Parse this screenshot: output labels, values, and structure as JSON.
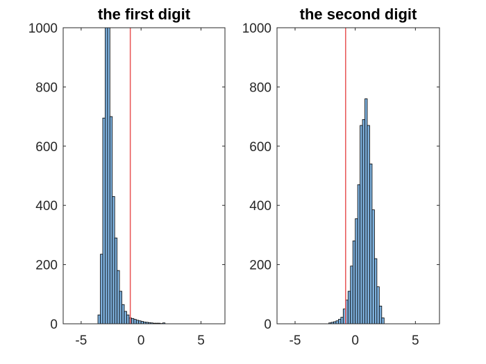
{
  "chart_data": [
    {
      "type": "bar",
      "title": "the first digit",
      "xlabel": "",
      "ylabel": "",
      "xlim": [
        -6.5,
        7
      ],
      "ylim": [
        0,
        1000
      ],
      "xticks": [
        -5,
        0,
        5
      ],
      "yticks": [
        0,
        200,
        400,
        600,
        800,
        1000
      ],
      "bin_width": 0.2,
      "bins_x": [
        -3.5,
        -3.3,
        -3.1,
        -2.9,
        -2.7,
        -2.5,
        -2.3,
        -2.1,
        -1.9,
        -1.7,
        -1.5,
        -1.3,
        -1.1,
        -0.9,
        -0.7,
        -0.5,
        -0.3,
        -0.1,
        0.1,
        0.3,
        0.5,
        0.7,
        0.9,
        1.1,
        1.3,
        1.5,
        1.7,
        1.9
      ],
      "values": [
        30,
        235,
        695,
        1000,
        1000,
        700,
        430,
        290,
        180,
        110,
        65,
        42,
        30,
        20,
        18,
        15,
        12,
        10,
        8,
        6,
        5,
        4,
        3,
        2,
        2,
        2,
        1,
        3
      ],
      "ref_line_x": -0.9,
      "bar_color": "#7eb1de",
      "ref_line_color": "#e85454"
    },
    {
      "type": "bar",
      "title": "the second digit",
      "xlabel": "",
      "ylabel": "",
      "xlim": [
        -6.5,
        7
      ],
      "ylim": [
        0,
        1000
      ],
      "xticks": [
        -5,
        0,
        5
      ],
      "yticks": [
        0,
        200,
        400,
        600,
        800,
        1000
      ],
      "bin_width": 0.2,
      "bins_x": [
        -2.1,
        -1.9,
        -1.7,
        -1.5,
        -1.3,
        -1.1,
        -0.9,
        -0.7,
        -0.5,
        -0.3,
        -0.1,
        0.1,
        0.3,
        0.5,
        0.7,
        0.9,
        1.1,
        1.3,
        1.5,
        1.7,
        1.9,
        2.1,
        2.3
      ],
      "values": [
        3,
        5,
        7,
        10,
        15,
        22,
        50,
        80,
        110,
        195,
        280,
        355,
        470,
        670,
        690,
        760,
        670,
        540,
        385,
        220,
        125,
        60,
        20
      ],
      "ref_line_x": -0.8,
      "bar_color": "#7eb1de",
      "ref_line_color": "#e85454"
    }
  ]
}
